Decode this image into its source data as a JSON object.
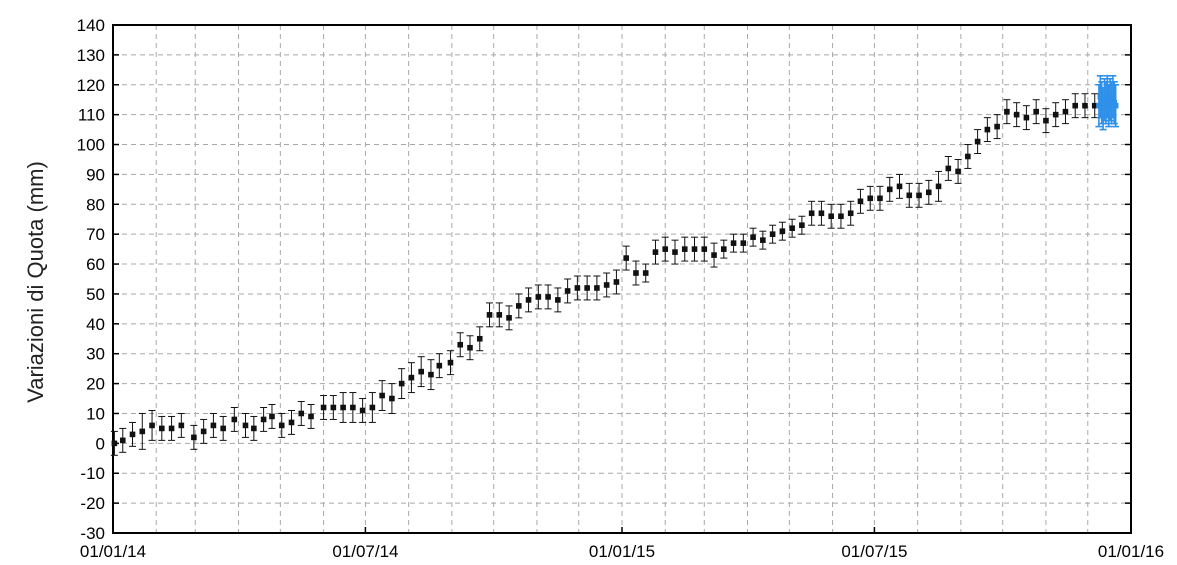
{
  "chart_data": {
    "type": "scatter",
    "title": "",
    "xlabel": "",
    "ylabel": "Variazioni di Quota (mm)",
    "ylim": [
      -30,
      140
    ],
    "xlim": [
      "2014-01-01",
      "2016-01-01"
    ],
    "y_ticks": [
      -30,
      -20,
      -10,
      0,
      10,
      20,
      30,
      40,
      50,
      60,
      70,
      80,
      90,
      100,
      110,
      120,
      130,
      140
    ],
    "x_tick_dates": [
      "2014-01-01",
      "2014-07-01",
      "2015-01-01",
      "2015-07-01",
      "2016-01-01"
    ],
    "x_tick_labels": [
      "01/01/14",
      "01/07/14",
      "01/01/15",
      "01/07/15",
      "01/01/16"
    ],
    "grid": true,
    "grid_style": "dashed",
    "series": [
      {
        "color": "#111111",
        "marker": "square",
        "error_bars": true,
        "points": [
          [
            "2014-01-02",
            0,
            4
          ],
          [
            "2014-01-08",
            1,
            4
          ],
          [
            "2014-01-15",
            3,
            4
          ],
          [
            "2014-01-22",
            4,
            6
          ],
          [
            "2014-01-29",
            6,
            5
          ],
          [
            "2014-02-05",
            5,
            4
          ],
          [
            "2014-02-12",
            5,
            4
          ],
          [
            "2014-02-19",
            6,
            4
          ],
          [
            "2014-02-28",
            2,
            4
          ],
          [
            "2014-03-07",
            4,
            4
          ],
          [
            "2014-03-14",
            6,
            4
          ],
          [
            "2014-03-21",
            5,
            4
          ],
          [
            "2014-03-29",
            8,
            4
          ],
          [
            "2014-04-06",
            6,
            4
          ],
          [
            "2014-04-12",
            5,
            4
          ],
          [
            "2014-04-19",
            8,
            4
          ],
          [
            "2014-04-25",
            9,
            4
          ],
          [
            "2014-05-02",
            6,
            4
          ],
          [
            "2014-05-09",
            7,
            4
          ],
          [
            "2014-05-16",
            10,
            4
          ],
          [
            "2014-05-23",
            9,
            4
          ],
          [
            "2014-06-01",
            12,
            4
          ],
          [
            "2014-06-08",
            12,
            4
          ],
          [
            "2014-06-15",
            12,
            5
          ],
          [
            "2014-06-22",
            12,
            5
          ],
          [
            "2014-06-29",
            11,
            4
          ],
          [
            "2014-07-06",
            12,
            5
          ],
          [
            "2014-07-13",
            16,
            5
          ],
          [
            "2014-07-20",
            15,
            5
          ],
          [
            "2014-07-27",
            20,
            5
          ],
          [
            "2014-08-03",
            22,
            5
          ],
          [
            "2014-08-10",
            24,
            5
          ],
          [
            "2014-08-17",
            23,
            5
          ],
          [
            "2014-08-23",
            26,
            4
          ],
          [
            "2014-08-31",
            27,
            4
          ],
          [
            "2014-09-07",
            33,
            4
          ],
          [
            "2014-09-14",
            32,
            4
          ],
          [
            "2014-09-21",
            35,
            4
          ],
          [
            "2014-09-28",
            43,
            4
          ],
          [
            "2014-10-05",
            43,
            4
          ],
          [
            "2014-10-12",
            42,
            4
          ],
          [
            "2014-10-19",
            46,
            4
          ],
          [
            "2014-10-26",
            48,
            4
          ],
          [
            "2014-11-02",
            49,
            4
          ],
          [
            "2014-11-09",
            49,
            4
          ],
          [
            "2014-11-16",
            48,
            4
          ],
          [
            "2014-11-23",
            51,
            4
          ],
          [
            "2014-11-30",
            52,
            4
          ],
          [
            "2014-12-07",
            52,
            4
          ],
          [
            "2014-12-14",
            52,
            4
          ],
          [
            "2014-12-21",
            53,
            4
          ],
          [
            "2014-12-28",
            54,
            4
          ],
          [
            "2015-01-04",
            62,
            4
          ],
          [
            "2015-01-11",
            57,
            4
          ],
          [
            "2015-01-18",
            57,
            3
          ],
          [
            "2015-01-25",
            64,
            4
          ],
          [
            "2015-02-01",
            65,
            4
          ],
          [
            "2015-02-08",
            64,
            4
          ],
          [
            "2015-02-15",
            65,
            4
          ],
          [
            "2015-02-22",
            65,
            4
          ],
          [
            "2015-03-01",
            65,
            4
          ],
          [
            "2015-03-08",
            63,
            4
          ],
          [
            "2015-03-15",
            65,
            3
          ],
          [
            "2015-03-22",
            67,
            3
          ],
          [
            "2015-03-29",
            67,
            3
          ],
          [
            "2015-04-05",
            69,
            3
          ],
          [
            "2015-04-12",
            68,
            3
          ],
          [
            "2015-04-19",
            70,
            3
          ],
          [
            "2015-04-26",
            71,
            3
          ],
          [
            "2015-05-03",
            72,
            3
          ],
          [
            "2015-05-10",
            73,
            3
          ],
          [
            "2015-05-17",
            77,
            4
          ],
          [
            "2015-05-24",
            77,
            4
          ],
          [
            "2015-05-31",
            76,
            4
          ],
          [
            "2015-06-07",
            76,
            4
          ],
          [
            "2015-06-14",
            77,
            4
          ],
          [
            "2015-06-21",
            81,
            4
          ],
          [
            "2015-06-28",
            82,
            4
          ],
          [
            "2015-07-05",
            82,
            4
          ],
          [
            "2015-07-12",
            85,
            4
          ],
          [
            "2015-07-19",
            86,
            4
          ],
          [
            "2015-07-26",
            83,
            4
          ],
          [
            "2015-08-02",
            83,
            4
          ],
          [
            "2015-08-09",
            84,
            4
          ],
          [
            "2015-08-16",
            86,
            5
          ],
          [
            "2015-08-23",
            92,
            4
          ],
          [
            "2015-08-30",
            91,
            4
          ],
          [
            "2015-09-06",
            96,
            4
          ],
          [
            "2015-09-13",
            101,
            4
          ],
          [
            "2015-09-20",
            105,
            4
          ],
          [
            "2015-09-27",
            106,
            4
          ],
          [
            "2015-10-04",
            111,
            4
          ],
          [
            "2015-10-11",
            110,
            4
          ],
          [
            "2015-10-18",
            109,
            4
          ],
          [
            "2015-10-25",
            111,
            4
          ],
          [
            "2015-11-01",
            108,
            4
          ],
          [
            "2015-11-08",
            110,
            4
          ],
          [
            "2015-11-15",
            111,
            4
          ],
          [
            "2015-11-22",
            113,
            4
          ],
          [
            "2015-11-29",
            113,
            4
          ],
          [
            "2015-12-06",
            113,
            4
          ]
        ]
      },
      {
        "color": "#2f90ea",
        "marker": "square",
        "error_bars": true,
        "points": [
          [
            "2015-12-09",
            113,
            7
          ],
          [
            "2015-12-10",
            116,
            7
          ],
          [
            "2015-12-11",
            114,
            7
          ],
          [
            "2015-12-12",
            112,
            7
          ],
          [
            "2015-12-13",
            115,
            7
          ],
          [
            "2015-12-14",
            114,
            7
          ],
          [
            "2015-12-15",
            116,
            7
          ],
          [
            "2015-12-16",
            113,
            7
          ],
          [
            "2015-12-17",
            115,
            7
          ],
          [
            "2015-12-18",
            114,
            7
          ],
          [
            "2015-12-19",
            116,
            7
          ],
          [
            "2015-12-20",
            114,
            7
          ],
          [
            "2015-12-21",
            113,
            7
          ]
        ]
      }
    ]
  }
}
